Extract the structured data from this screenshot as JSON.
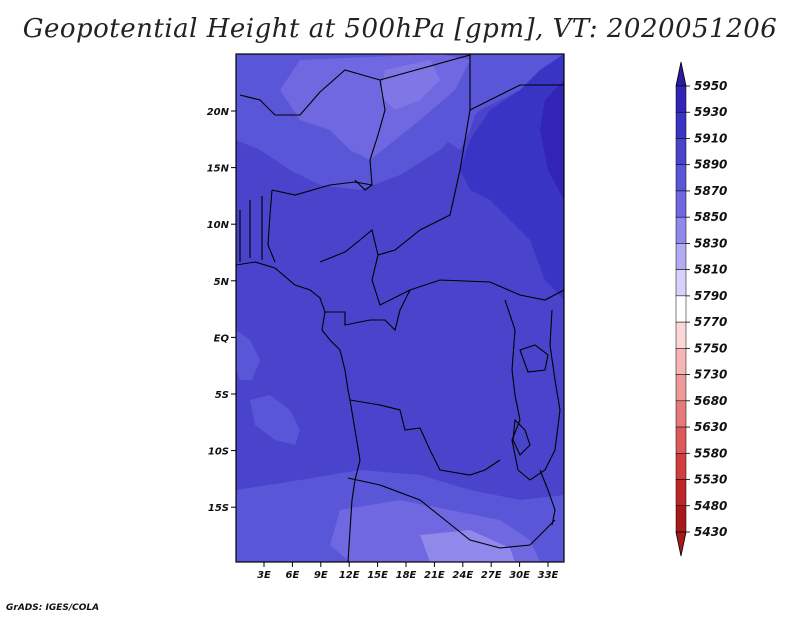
{
  "title": "Geopotential Height at 500hPa [gpm], VT: 2020051206",
  "credit": "GrADS: IGES/COLA",
  "map": {
    "lon_ticks": [
      "3E",
      "6E",
      "9E",
      "12E",
      "15E",
      "18E",
      "21E",
      "24E",
      "27E",
      "30E",
      "33E"
    ],
    "lat_ticks": [
      "20N",
      "15N",
      "10N",
      "5N",
      "EQ",
      "5S",
      "10S",
      "15S"
    ]
  },
  "colorbar": {
    "levels": [
      "5950",
      "5930",
      "5910",
      "5890",
      "5870",
      "5850",
      "5830",
      "5810",
      "5790",
      "5770",
      "5750",
      "5730",
      "5680",
      "5630",
      "5580",
      "5530",
      "5480",
      "5430"
    ],
    "colors": [
      "#2a1a9e",
      "#3224b4",
      "#3a34c4",
      "#4a44cc",
      "#5a56d8",
      "#7068e0",
      "#9088ea",
      "#b2acf2",
      "#d6d2fa",
      "#ffffff",
      "#fbd8d8",
      "#f6b6b6",
      "#ee9a9a",
      "#e67a7a",
      "#dc5a5a",
      "#d03e3e",
      "#bc2626",
      "#a61a1a"
    ]
  }
}
